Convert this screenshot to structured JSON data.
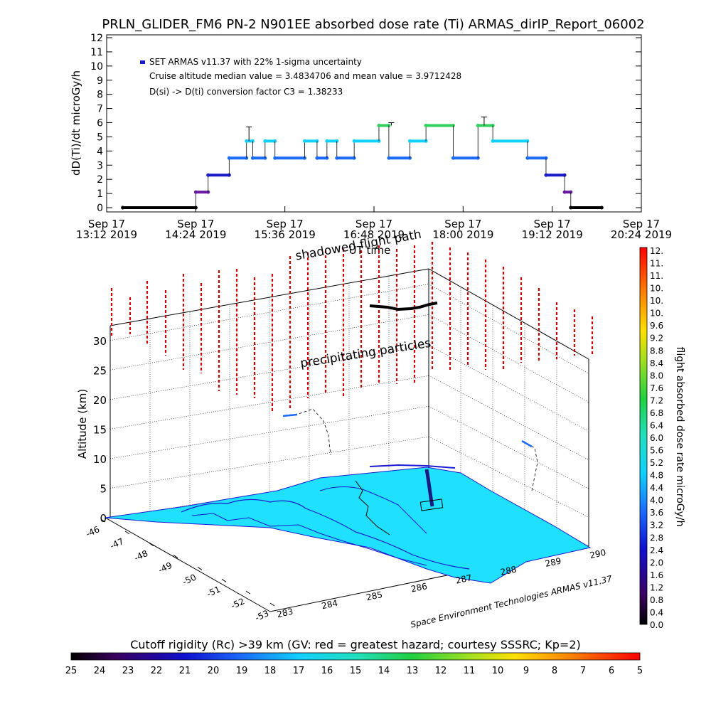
{
  "title": "PRLN_GLIDER_FM6 PN-2 N901EE absorbed dose rate (Ti) ARMAS_dirIP_Report_06002",
  "chart_data": [
    {
      "type": "line",
      "ylabel": "dD(Ti)/dt microGy/h",
      "xlabel": "UT time",
      "ylim": [
        0,
        12
      ],
      "yticks": [
        "0",
        "1",
        "2",
        "3",
        "4",
        "5",
        "6",
        "7",
        "8",
        "9",
        "10",
        "11",
        "12"
      ],
      "xlim_minutes": [
        0,
        432
      ],
      "xticks": [
        {
          "date": "Sep 17",
          "time": "13:12 2019",
          "t": 0
        },
        {
          "date": "Sep 17",
          "time": "14:24 2019",
          "t": 72
        },
        {
          "date": "Sep 17",
          "time": "15:36 2019",
          "t": 144
        },
        {
          "date": "Sep 17",
          "time": "16:48 2019",
          "t": 216
        },
        {
          "date": "Sep 17",
          "time": "18:00 2019",
          "t": 288
        },
        {
          "date": "Sep 17",
          "time": "19:12 2019",
          "t": 360
        },
        {
          "date": "Sep 17",
          "time": "20:24 2019",
          "t": 432
        }
      ],
      "legend": [
        "SET ARMAS v11.37 with 22% 1-sigma uncertainty",
        "Cruise altitude median value = 3.4834706 and mean value = 3.9712428",
        "D(si) -> D(ti) conversion factor C3 = 1.38233"
      ],
      "series_color": "#1a1acc",
      "segments": [
        {
          "t0": 13,
          "t1": 72,
          "v": 0
        },
        {
          "t0": 72,
          "t1": 82,
          "v": 1.1
        },
        {
          "t0": 82,
          "t1": 99,
          "v": 2.3
        },
        {
          "t0": 99,
          "t1": 113,
          "v": 3.5
        },
        {
          "t0": 113,
          "t1": 118,
          "v": 4.7
        },
        {
          "t0": 118,
          "t1": 128,
          "v": 3.5
        },
        {
          "t0": 128,
          "t1": 136,
          "v": 4.7
        },
        {
          "t0": 136,
          "t1": 160,
          "v": 3.5
        },
        {
          "t0": 160,
          "t1": 170,
          "v": 4.7
        },
        {
          "t0": 170,
          "t1": 178,
          "v": 3.5
        },
        {
          "t0": 178,
          "t1": 186,
          "v": 4.7
        },
        {
          "t0": 186,
          "t1": 200,
          "v": 3.5
        },
        {
          "t0": 200,
          "t1": 220,
          "v": 4.7
        },
        {
          "t0": 220,
          "t1": 228,
          "v": 5.8
        },
        {
          "t0": 228,
          "t1": 245,
          "v": 3.5
        },
        {
          "t0": 245,
          "t1": 258,
          "v": 4.7
        },
        {
          "t0": 258,
          "t1": 280,
          "v": 5.8
        },
        {
          "t0": 280,
          "t1": 300,
          "v": 3.5
        },
        {
          "t0": 300,
          "t1": 312,
          "v": 5.8
        },
        {
          "t0": 312,
          "t1": 340,
          "v": 4.7
        },
        {
          "t0": 340,
          "t1": 355,
          "v": 3.5
        },
        {
          "t0": 355,
          "t1": 370,
          "v": 2.3
        },
        {
          "t0": 370,
          "t1": 375,
          "v": 1.1
        },
        {
          "t0": 375,
          "t1": 400,
          "v": 0
        }
      ],
      "errorbars": [
        {
          "t": 115,
          "lo": 4.7,
          "hi": 5.7
        },
        {
          "t": 230,
          "lo": 5.8,
          "hi": 6.0
        },
        {
          "t": 305,
          "lo": 5.8,
          "hi": 6.4
        }
      ]
    },
    {
      "type": "scatter",
      "view": "3d-perspective",
      "ylabel": "Altitude (km)",
      "zticks": [
        "0",
        "5",
        "10",
        "15",
        "20",
        "25",
        "30"
      ],
      "lat_ticks": [
        "-46",
        "-47",
        "-48",
        "-49",
        "-50",
        "-51",
        "-52",
        "-53"
      ],
      "lon_ticks": [
        "283",
        "284",
        "285",
        "286",
        "287",
        "288",
        "289",
        "290"
      ],
      "annotations": [
        "shadowed flight path",
        "precipitating particles"
      ],
      "credit": "Space Environment Technologies ARMAS v11.37",
      "colorbar": {
        "label": "flight absorbed dose rate microGy/h",
        "ticks": [
          "12.",
          "11.",
          "11.",
          "10.",
          "10.",
          "10.",
          "9.6",
          "9.2",
          "8.8",
          "8.4",
          "8.0",
          "7.6",
          "7.2",
          "6.8",
          "6.4",
          "6.0",
          "5.6",
          "5.2",
          "4.8",
          "4.4",
          "4.0",
          "3.6",
          "3.2",
          "2.8",
          "2.4",
          "2.0",
          "1.6",
          "1.2",
          "0.8",
          "0.4",
          "0.0"
        ]
      }
    },
    {
      "type": "heatmap",
      "title": "Cutoff rigidity (Rc) >39 km (GV: red = greatest hazard; courtesy SSSRC; Kp=2)",
      "ticks": [
        "25",
        "24",
        "23",
        "22",
        "21",
        "20",
        "19",
        "18",
        "17",
        "16",
        "15",
        "14",
        "13",
        "12",
        "11",
        "10",
        "9",
        "8",
        "7",
        "6",
        "5"
      ]
    }
  ],
  "colors": {
    "sea": "#1fe0ff",
    "coast": "#1a1ad0",
    "flight_track": "#000000",
    "particles": "#cc0000",
    "low_dose_points": "#1a1acc",
    "high_dose_points": "#30d060"
  }
}
